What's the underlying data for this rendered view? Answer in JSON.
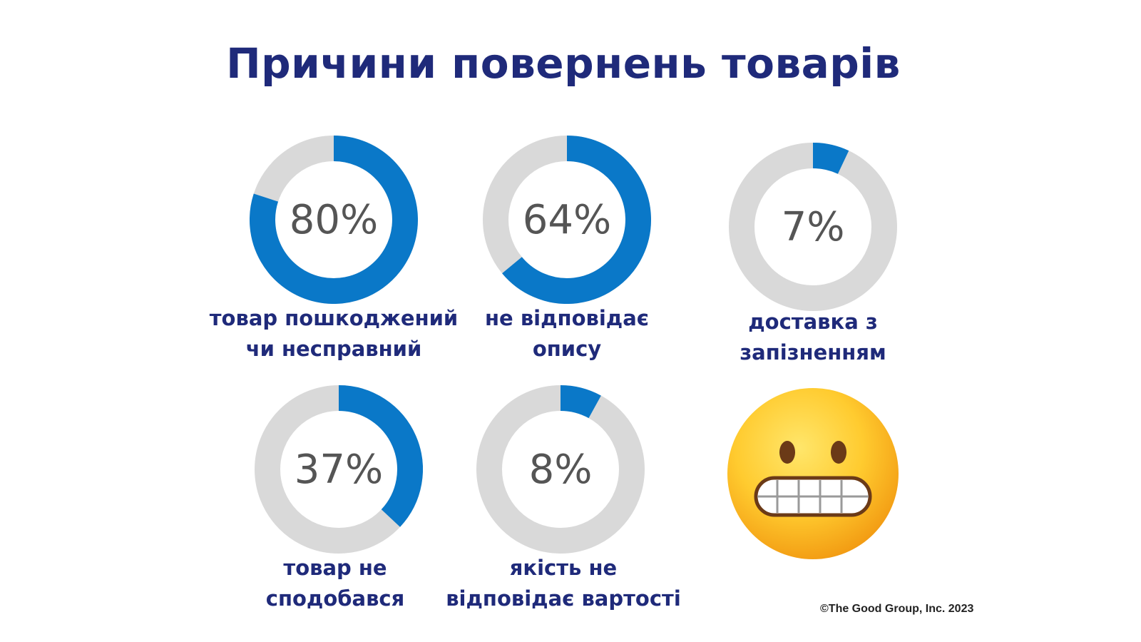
{
  "title": "Причини повернень товарів",
  "colors": {
    "accent": "#0a78c8",
    "track": "#d9d9d9",
    "title": "#1f2a7a"
  },
  "chart_data": [
    {
      "type": "pie",
      "subtype": "donut",
      "value": 80,
      "display": "80%",
      "label_line1": "товар пошкоджений",
      "label_line2": "чи несправний"
    },
    {
      "type": "pie",
      "subtype": "donut",
      "value": 64,
      "display": "64%",
      "label_line1": "не відповідає",
      "label_line2": "опису"
    },
    {
      "type": "pie",
      "subtype": "donut",
      "value": 7,
      "display": "7%",
      "label_line1": "доставка з",
      "label_line2": "запізненням"
    },
    {
      "type": "pie",
      "subtype": "donut",
      "value": 37,
      "display": "37%",
      "label_line1": "товар не",
      "label_line2": "сподобався"
    },
    {
      "type": "pie",
      "subtype": "donut",
      "value": 8,
      "display": "8%",
      "label_line1": "якість не",
      "label_line2": "відповідає вартості"
    }
  ],
  "decoration": {
    "emoji": "grimacing-face-icon"
  },
  "copyright": "©The Good Group, Inc. 2023"
}
